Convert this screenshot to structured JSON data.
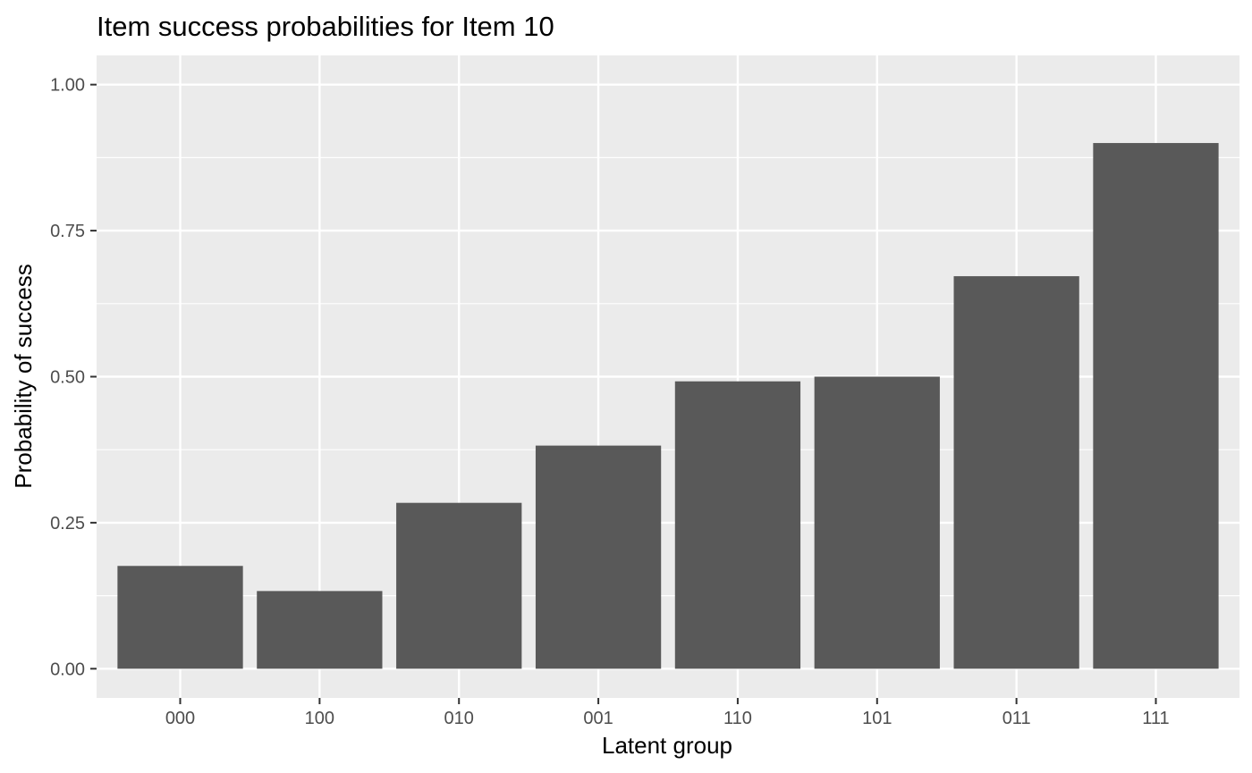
{
  "chart_data": {
    "type": "bar",
    "title": "Item success probabilities for Item 10",
    "xlabel": "Latent group",
    "ylabel": "Probability of success",
    "categories": [
      "000",
      "100",
      "010",
      "001",
      "110",
      "101",
      "011",
      "111"
    ],
    "values": [
      0.176,
      0.133,
      0.284,
      0.382,
      0.492,
      0.5,
      0.672,
      0.9
    ],
    "yticks": [
      0.0,
      0.25,
      0.5,
      0.75,
      1.0
    ],
    "ytick_labels": [
      "0.00",
      "0.25",
      "0.50",
      "0.75",
      "1.00"
    ],
    "ylim": [
      -0.05,
      1.05
    ],
    "grid": true,
    "colors": {
      "panel_background": "#ebebeb",
      "grid": "#ffffff",
      "bar_fill": "#595959",
      "tick": "#333333"
    }
  }
}
